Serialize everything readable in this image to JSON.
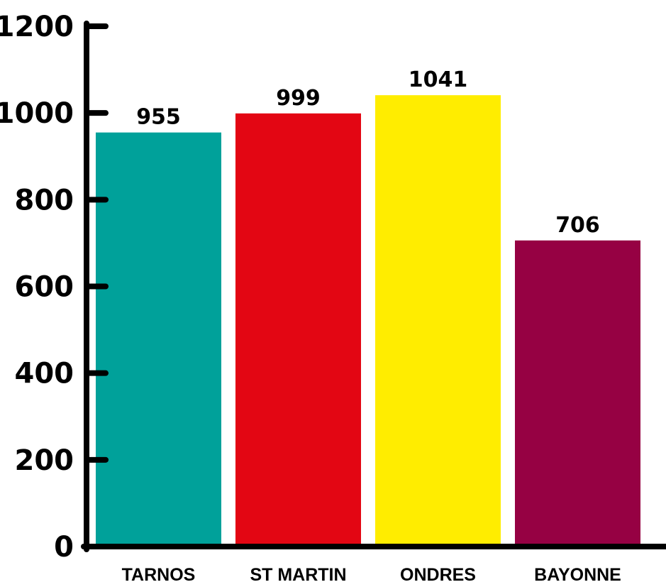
{
  "chart_data": {
    "type": "bar",
    "title": "",
    "xlabel": "",
    "ylabel": "",
    "categories": [
      "TARNOS",
      "ST MARTIN",
      "ONDRES",
      "BAYONNE"
    ],
    "values": [
      955,
      999,
      1041,
      706
    ],
    "value_labels": [
      "955",
      "999",
      "1041",
      "706"
    ],
    "bar_colors": [
      "#00a19a",
      "#e30613",
      "#ffed00",
      "#960143"
    ],
    "ylim": [
      0,
      1200
    ],
    "yticks": [
      0,
      200,
      400,
      600,
      800,
      1000,
      1200
    ],
    "ytick_labels": [
      "0",
      "200",
      "400",
      "600",
      "800",
      "1000",
      "1200"
    ],
    "grid": false,
    "legend": "none"
  }
}
